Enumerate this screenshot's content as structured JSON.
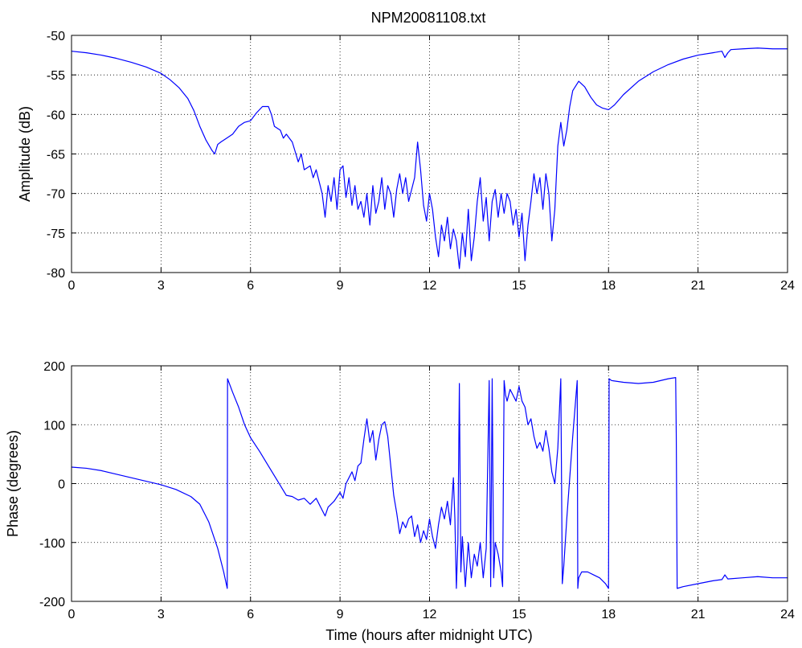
{
  "figure": {
    "title": "NPM20081108.txt",
    "line_color": "#0000ff",
    "background": "#ffffff"
  },
  "chart_data": [
    {
      "type": "line",
      "title": "NPM20081108.txt",
      "xlabel": "",
      "ylabel": "Amplitude (dB)",
      "xlim": [
        0,
        24
      ],
      "ylim": [
        -80,
        -50
      ],
      "xticks": [
        0,
        3,
        6,
        9,
        12,
        15,
        18,
        21,
        24
      ],
      "yticks": [
        -80,
        -75,
        -70,
        -65,
        -60,
        -55,
        -50
      ],
      "grid": true,
      "series": [
        {
          "color": "#0000ff",
          "x": [
            0,
            0.5,
            1,
            1.5,
            2,
            2.5,
            3,
            3.3,
            3.6,
            3.9,
            4.1,
            4.3,
            4.5,
            4.7,
            4.8,
            4.9,
            5.0,
            5.2,
            5.4,
            5.6,
            5.8,
            6.0,
            6.2,
            6.4,
            6.6,
            6.7,
            6.8,
            7.0,
            7.1,
            7.2,
            7.4,
            7.6,
            7.7,
            7.8,
            8.0,
            8.1,
            8.2,
            8.3,
            8.4,
            8.5,
            8.6,
            8.7,
            8.8,
            8.9,
            9.0,
            9.1,
            9.2,
            9.3,
            9.4,
            9.5,
            9.6,
            9.7,
            9.8,
            9.9,
            10.0,
            10.1,
            10.2,
            10.3,
            10.4,
            10.5,
            10.6,
            10.7,
            10.8,
            10.9,
            11.0,
            11.1,
            11.2,
            11.3,
            11.4,
            11.5,
            11.6,
            11.7,
            11.8,
            11.9,
            12.0,
            12.1,
            12.2,
            12.3,
            12.4,
            12.5,
            12.6,
            12.7,
            12.8,
            12.9,
            13.0,
            13.1,
            13.2,
            13.3,
            13.4,
            13.5,
            13.6,
            13.7,
            13.8,
            13.9,
            14.0,
            14.1,
            14.2,
            14.3,
            14.4,
            14.5,
            14.6,
            14.7,
            14.8,
            14.9,
            15.0,
            15.1,
            15.2,
            15.3,
            15.4,
            15.5,
            15.6,
            15.7,
            15.8,
            15.9,
            16.0,
            16.1,
            16.2,
            16.3,
            16.4,
            16.5,
            16.6,
            16.7,
            16.8,
            17.0,
            17.2,
            17.4,
            17.6,
            17.8,
            18.0,
            18.2,
            18.5,
            19.0,
            19.5,
            20.0,
            20.5,
            21.0,
            21.5,
            21.8,
            21.9,
            22.0,
            22.1,
            22.5,
            23.0,
            23.5,
            24.0
          ],
          "y": [
            -52.0,
            -52.2,
            -52.5,
            -52.9,
            -53.4,
            -54.0,
            -54.8,
            -55.6,
            -56.6,
            -58.0,
            -59.5,
            -61.5,
            -63.2,
            -64.5,
            -65.0,
            -63.8,
            -63.5,
            -63.0,
            -62.5,
            -61.5,
            -61.0,
            -60.8,
            -59.8,
            -59.0,
            -59.0,
            -60.0,
            -61.5,
            -62.0,
            -63.0,
            -62.5,
            -63.5,
            -66.0,
            -65.0,
            -67.0,
            -66.5,
            -68.0,
            -67.0,
            -68.5,
            -70.0,
            -73.0,
            -69.0,
            -71.0,
            -68.0,
            -72.0,
            -67.0,
            -66.5,
            -70.5,
            -68.0,
            -71.5,
            -69.0,
            -72.0,
            -71.0,
            -73.0,
            -70.0,
            -74.0,
            -69.0,
            -72.5,
            -71.0,
            -68.0,
            -72.0,
            -69.0,
            -70.0,
            -73.0,
            -69.5,
            -67.5,
            -70.0,
            -68.0,
            -71.0,
            -69.5,
            -68.0,
            -63.5,
            -67.0,
            -71.5,
            -73.5,
            -70.0,
            -72.0,
            -75.5,
            -78.0,
            -74.0,
            -76.0,
            -73.0,
            -77.0,
            -74.5,
            -76.0,
            -79.5,
            -75.0,
            -78.0,
            -72.0,
            -78.5,
            -75.5,
            -71.0,
            -68.0,
            -73.5,
            -70.5,
            -76.0,
            -71.0,
            -69.5,
            -73.0,
            -70.0,
            -72.5,
            -70.0,
            -71.0,
            -74.0,
            -72.0,
            -75.5,
            -72.5,
            -78.5,
            -74.0,
            -71.0,
            -67.5,
            -70.0,
            -68.0,
            -72.0,
            -67.5,
            -70.0,
            -76.0,
            -72.0,
            -64.0,
            -61.0,
            -64.0,
            -62.0,
            -59.0,
            -57.0,
            -55.8,
            -56.5,
            -57.8,
            -58.8,
            -59.2,
            -59.4,
            -58.8,
            -57.5,
            -55.8,
            -54.6,
            -53.7,
            -53.0,
            -52.5,
            -52.2,
            -52.0,
            -52.8,
            -52.2,
            -51.8,
            -51.7,
            -51.6,
            -51.7,
            -51.7
          ]
        }
      ]
    },
    {
      "type": "line",
      "title": "",
      "xlabel": "Time (hours after midnight UTC)",
      "ylabel": "Phase (degrees)",
      "xlim": [
        0,
        24
      ],
      "ylim": [
        -200,
        200
      ],
      "xticks": [
        0,
        3,
        6,
        9,
        12,
        15,
        18,
        21,
        24
      ],
      "yticks": [
        -200,
        -100,
        0,
        100,
        200
      ],
      "grid": true,
      "series": [
        {
          "color": "#0000ff",
          "x": [
            0,
            0.5,
            1,
            1.5,
            2,
            2.5,
            3,
            3.5,
            4,
            4.3,
            4.6,
            4.9,
            5.1,
            5.22,
            5.23,
            5.4,
            5.6,
            5.8,
            6.0,
            6.3,
            6.6,
            6.9,
            7.2,
            7.4,
            7.6,
            7.8,
            8.0,
            8.2,
            8.4,
            8.5,
            8.6,
            8.8,
            9.0,
            9.1,
            9.2,
            9.3,
            9.4,
            9.5,
            9.6,
            9.7,
            9.8,
            9.9,
            10.0,
            10.1,
            10.2,
            10.3,
            10.4,
            10.5,
            10.6,
            10.7,
            10.8,
            10.9,
            11.0,
            11.1,
            11.2,
            11.3,
            11.4,
            11.5,
            11.6,
            11.7,
            11.8,
            11.9,
            12.0,
            12.1,
            12.2,
            12.3,
            12.4,
            12.5,
            12.6,
            12.7,
            12.8,
            12.85,
            12.9,
            12.95,
            13.0,
            13.05,
            13.1,
            13.2,
            13.3,
            13.4,
            13.5,
            13.6,
            13.7,
            13.8,
            13.9,
            14.0,
            14.05,
            14.1,
            14.15,
            14.2,
            14.3,
            14.4,
            14.45,
            14.5,
            14.55,
            14.6,
            14.7,
            14.8,
            14.9,
            15.0,
            15.1,
            15.2,
            15.3,
            15.4,
            15.5,
            15.6,
            15.7,
            15.8,
            15.9,
            16.0,
            16.1,
            16.2,
            16.3,
            16.4,
            16.45,
            16.5,
            16.6,
            16.8,
            16.95,
            16.97,
            17.0,
            17.1,
            17.3,
            17.5,
            17.7,
            17.9,
            18.0,
            18.02,
            18.1,
            18.5,
            19.0,
            19.5,
            20.0,
            20.25,
            20.27,
            20.3,
            20.5,
            21.0,
            21.5,
            21.8,
            21.9,
            22.0,
            22.5,
            23.0,
            23.5,
            24.0
          ],
          "y": [
            28,
            26,
            22,
            16,
            10,
            4,
            -2,
            -10,
            -22,
            -35,
            -65,
            -110,
            -150,
            -178,
            178,
            155,
            130,
            100,
            78,
            55,
            30,
            5,
            -20,
            -22,
            -28,
            -25,
            -35,
            -25,
            -45,
            -55,
            -40,
            -30,
            -15,
            -25,
            0,
            10,
            20,
            5,
            30,
            35,
            75,
            110,
            70,
            90,
            40,
            75,
            100,
            105,
            80,
            30,
            -20,
            -50,
            -85,
            -65,
            -75,
            -60,
            -55,
            -90,
            -70,
            -100,
            -80,
            -95,
            -60,
            -90,
            -110,
            -70,
            -40,
            -60,
            -30,
            -70,
            10,
            -60,
            -178,
            -100,
            170,
            -150,
            -90,
            -175,
            -100,
            -160,
            -120,
            -140,
            -100,
            -160,
            -110,
            175,
            -175,
            178,
            -160,
            -100,
            -120,
            -150,
            -175,
            175,
            150,
            140,
            160,
            150,
            140,
            165,
            140,
            130,
            100,
            110,
            80,
            60,
            70,
            55,
            90,
            60,
            20,
            0,
            60,
            178,
            -170,
            -140,
            -60,
            80,
            175,
            -178,
            -160,
            -150,
            -150,
            -155,
            -160,
            -170,
            -178,
            178,
            175,
            172,
            170,
            172,
            178,
            180,
            85,
            -178,
            -175,
            -170,
            -165,
            -163,
            -155,
            -162,
            -160,
            -158,
            -160,
            -160
          ]
        }
      ]
    }
  ]
}
